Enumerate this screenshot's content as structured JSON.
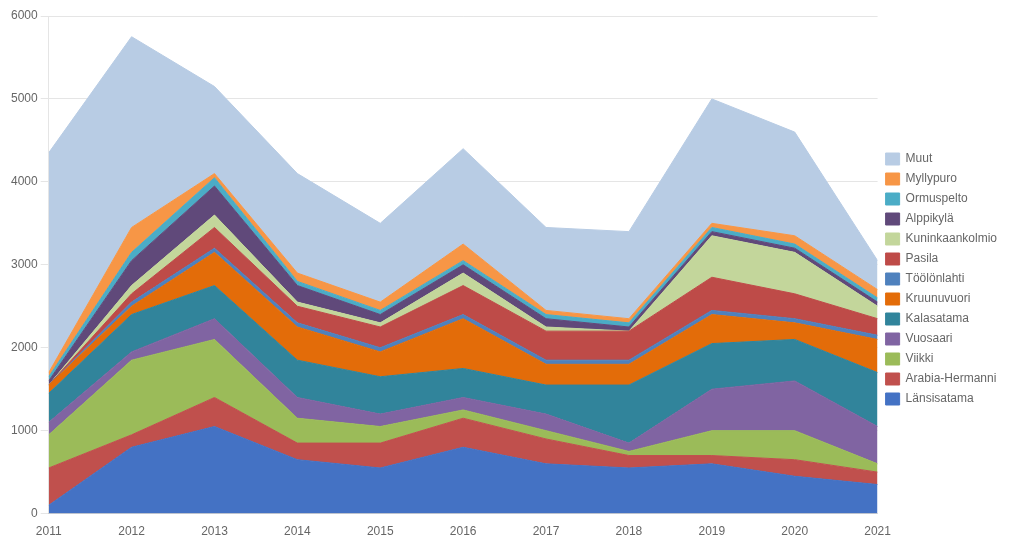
{
  "chart_data": {
    "type": "area",
    "stacked": true,
    "x": [
      2011,
      2012,
      2013,
      2014,
      2015,
      2016,
      2017,
      2018,
      2019,
      2020,
      2021
    ],
    "xlim": [
      2011,
      2021
    ],
    "xticks": [
      2011,
      2012,
      2013,
      2014,
      2015,
      2016,
      2017,
      2018,
      2019,
      2020,
      2021
    ],
    "series": [
      {
        "name": "Länsisatama",
        "color": "#4472C4",
        "values": [
          100,
          800,
          1050,
          650,
          550,
          800,
          600,
          550,
          600,
          450,
          350
        ]
      },
      {
        "name": "Arabia-Hermanni",
        "color": "#C0504D",
        "values": [
          450,
          150,
          350,
          200,
          300,
          350,
          300,
          150,
          100,
          200,
          150
        ]
      },
      {
        "name": "Viikki",
        "color": "#9BBB59",
        "values": [
          400,
          900,
          700,
          300,
          200,
          100,
          100,
          50,
          300,
          350,
          100
        ]
      },
      {
        "name": "Vuosaari",
        "color": "#8064A2",
        "values": [
          150,
          100,
          250,
          250,
          150,
          150,
          200,
          100,
          500,
          600,
          450
        ]
      },
      {
        "name": "Kalasatama",
        "color": "#31849B",
        "values": [
          350,
          450,
          400,
          450,
          450,
          350,
          350,
          700,
          550,
          500,
          650
        ]
      },
      {
        "name": "Kruunuvuori",
        "color": "#E36C09",
        "values": [
          100,
          100,
          400,
          400,
          300,
          600,
          250,
          250,
          350,
          200,
          400
        ]
      },
      {
        "name": "Töölönlahti",
        "color": "#4F81BD",
        "values": [
          0,
          50,
          50,
          50,
          50,
          50,
          50,
          50,
          50,
          50,
          50
        ]
      },
      {
        "name": "Pasila",
        "color": "#BE4B48",
        "values": [
          0,
          100,
          250,
          200,
          250,
          350,
          350,
          350,
          400,
          300,
          200
        ]
      },
      {
        "name": "Kuninkaankolmio",
        "color": "#C3D69B",
        "values": [
          0,
          100,
          150,
          50,
          50,
          150,
          50,
          0,
          500,
          500,
          150
        ]
      },
      {
        "name": "Alppikylä",
        "color": "#60497A",
        "values": [
          50,
          300,
          350,
          200,
          100,
          100,
          100,
          50,
          50,
          50,
          50
        ]
      },
      {
        "name": "Ormuspelto",
        "color": "#4BACC6",
        "values": [
          50,
          100,
          100,
          50,
          50,
          50,
          50,
          50,
          50,
          50,
          50
        ]
      },
      {
        "name": "Myllypuro",
        "color": "#F79646",
        "values": [
          50,
          300,
          50,
          100,
          100,
          200,
          50,
          50,
          50,
          100,
          100
        ]
      },
      {
        "name": "Muut",
        "color": "#B8CCE4",
        "values": [
          2650,
          2300,
          1050,
          1200,
          950,
          1150,
          1000,
          1050,
          1500,
          1250,
          350
        ]
      }
    ],
    "ylim": [
      0,
      6000
    ],
    "yticks": [
      0,
      1000,
      2000,
      3000,
      4000,
      5000,
      6000
    ],
    "grid": true,
    "legend": "right"
  }
}
